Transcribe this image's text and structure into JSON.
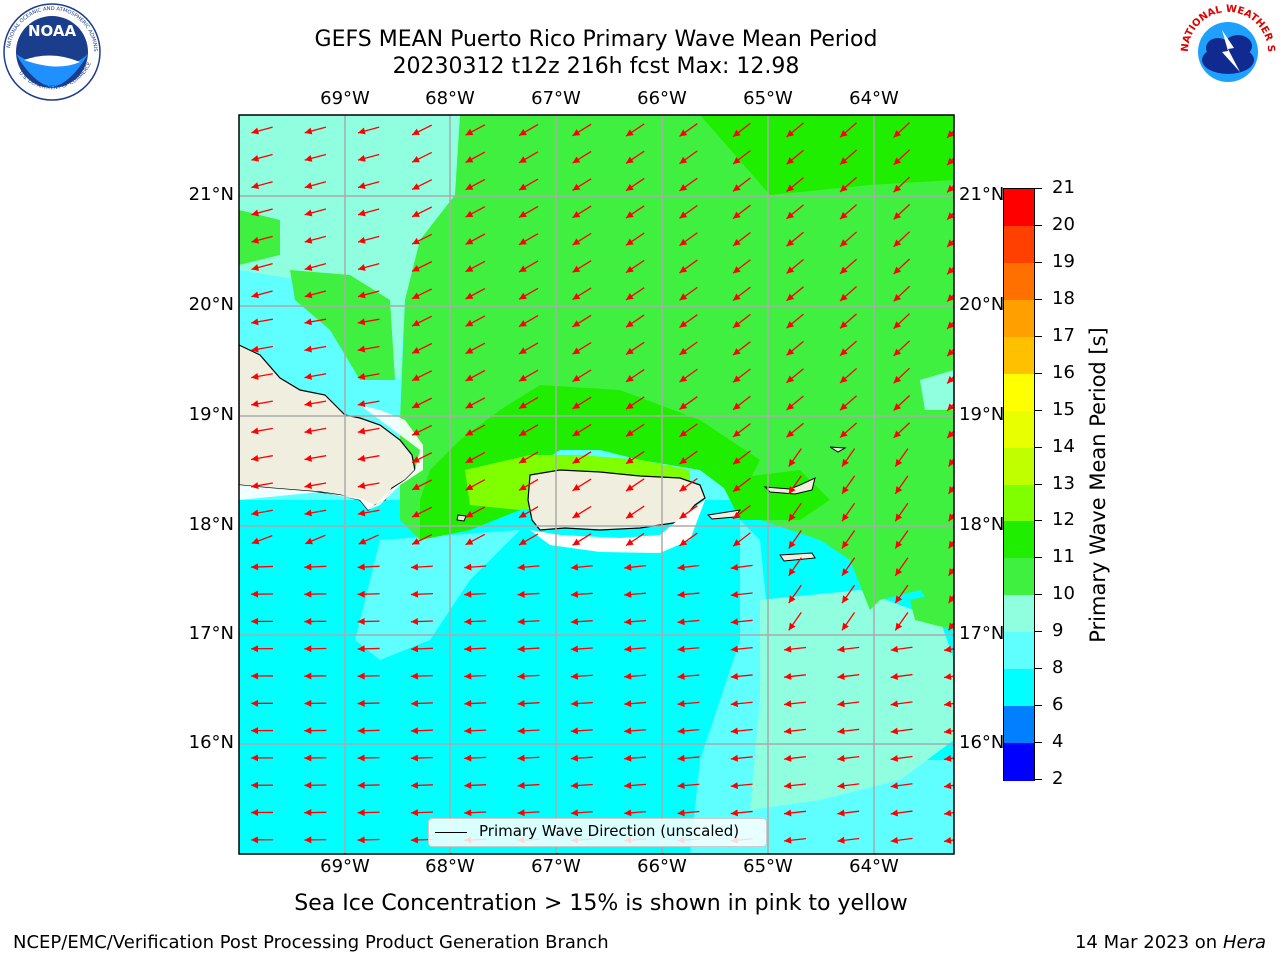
{
  "header": {
    "title_line1": "GEFS MEAN Puerto Rico Primary Wave Mean Period",
    "title_line2": "20230312 t12z 216h fcst   Max: 12.98"
  },
  "logos": {
    "noaa_text": "NOAA",
    "noaa_ring_text": "NATIONAL OCEANIC AND ATMOSPHERIC ADMINISTRATION",
    "noaa_ring_bottom": "U.S. DEPARTMENT OF COMMERCE",
    "nws_ring_text": "NATIONAL WEATHER SERVICE"
  },
  "map": {
    "lon_labels": [
      "69°W",
      "68°W",
      "67°W",
      "66°W",
      "65°W",
      "64°W"
    ],
    "lat_labels": [
      "21°N",
      "20°N",
      "19°N",
      "18°N",
      "17°N",
      "16°N"
    ],
    "legend_label": "Primary Wave Direction (unscaled)",
    "land_color": "#efeedf"
  },
  "colorbar": {
    "label": "Primary Wave Mean Period [s]",
    "ticks": [
      "2",
      "4",
      "6",
      "8",
      "9",
      "10",
      "11",
      "12",
      "13",
      "14",
      "15",
      "16",
      "17",
      "18",
      "19",
      "20",
      "21"
    ],
    "colors": [
      "#0000ff",
      "#0080ff",
      "#00ffff",
      "#60ffff",
      "#90ffe0",
      "#40f040",
      "#20ee00",
      "#80ff00",
      "#c0ff00",
      "#e8ff00",
      "#ffff00",
      "#ffc000",
      "#ffa000",
      "#ff7000",
      "#ff4000",
      "#ff0000"
    ]
  },
  "caption": "Sea Ice Concentration > 15% is shown in pink to yellow",
  "footer": {
    "left": "NCEP/EMC/Verification Post Processing Product Generation Branch",
    "date": "14 Mar 2023 on",
    "host": "Hera"
  },
  "colors": {
    "arrow": "#ff0000",
    "cyan": "#00ffff",
    "light_cyan": "#60ffff",
    "pale": "#90ffe0",
    "green1": "#40f040",
    "green2": "#20ee00",
    "yellow_green": "#80ff00"
  }
}
